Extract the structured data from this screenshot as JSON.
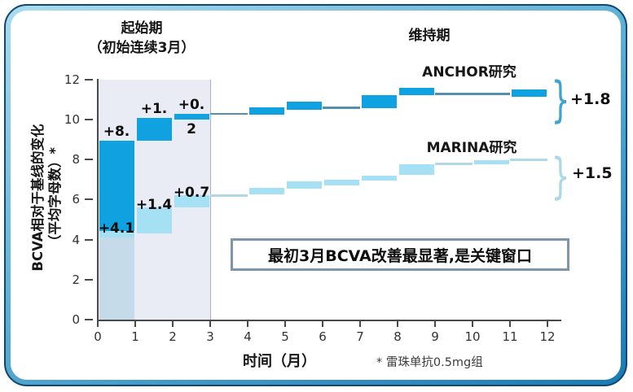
{
  "colors": {
    "anchor_bar": "#10a1e0",
    "marina_bar": "#a6e0f4",
    "marina_muted": "#c5dbe9",
    "initiation_shade": "#e9ebf5",
    "shade_border": "#a9b1bf",
    "connector_dark": "#568fae",
    "connector_light": "#b0d8e6",
    "axis": "#4a4a4a",
    "frame_band": "#1b7ab2",
    "callout_border": "#7d96ab"
  },
  "phase_initiation": {
    "title_line1": "起始期",
    "title_line2": "（初始连续3月）"
  },
  "phase_maintenance": {
    "title": "维持期"
  },
  "y_axis": {
    "label_line1": "BCVA相对于基线的变化",
    "label_line2": "（平均字母数）*",
    "ticks": [
      0,
      2,
      4,
      6,
      8,
      10,
      12
    ]
  },
  "x_axis": {
    "label": "时间（月）",
    "ticks": [
      0,
      1,
      2,
      3,
      4,
      5,
      6,
      7,
      8,
      9,
      10,
      11,
      12
    ]
  },
  "footnote": "* 雷珠单抗0.5mg组",
  "callout": {
    "text": "最初3月BCVA改善最显著,是关键窗口"
  },
  "chart_data": {
    "type": "bar",
    "subtype": "waterfall-step",
    "title": "BCVA相对于基线的变化（平均字母数）vs 时间（月）",
    "x_range": [
      0,
      12
    ],
    "y_range": [
      0,
      12
    ],
    "shaded_region_months": [
      0,
      3
    ],
    "brace_glyph": "}",
    "series": [
      {
        "name": "ANCHOR研究",
        "color": "#10a1e0",
        "maintenance_total_label": "+1.8",
        "segments": [
          {
            "months": [
              0,
              1
            ],
            "from": 4.45,
            "to": 8.95,
            "style": "bar",
            "label": "+8."
          },
          {
            "months": [
              1,
              2
            ],
            "from": 8.95,
            "to": 10.1,
            "style": "bar",
            "label": "+1."
          },
          {
            "months": [
              2,
              3
            ],
            "from": 10.0,
            "to": 10.3,
            "style": "bar",
            "label_above": "+0.",
            "label_below": "2"
          },
          {
            "months": [
              3,
              4
            ],
            "at": 10.3,
            "style": "line"
          },
          {
            "months": [
              4,
              5
            ],
            "from": 10.25,
            "to": 10.6,
            "style": "bar"
          },
          {
            "months": [
              5,
              6
            ],
            "from": 10.5,
            "to": 10.9,
            "style": "bar"
          },
          {
            "months": [
              6,
              7
            ],
            "at": 10.6,
            "style": "line"
          },
          {
            "months": [
              7,
              8
            ],
            "from": 10.55,
            "to": 11.2,
            "style": "bar"
          },
          {
            "months": [
              8,
              9
            ],
            "from": 11.2,
            "to": 11.6,
            "style": "bar"
          },
          {
            "months": [
              9,
              10
            ],
            "at": 11.3,
            "style": "line"
          },
          {
            "months": [
              10,
              11
            ],
            "at": 11.3,
            "style": "line"
          },
          {
            "months": [
              11,
              12
            ],
            "from": 11.15,
            "to": 11.5,
            "style": "bar"
          }
        ]
      },
      {
        "name": "MARINA研究",
        "color": "#a6e0f4",
        "maintenance_total_label": "+1.5",
        "segments": [
          {
            "months": [
              0,
              1
            ],
            "from": 0,
            "to": 4.45,
            "style": "bar",
            "muted_below": 4.1,
            "label": "+4.1"
          },
          {
            "months": [
              1,
              2
            ],
            "from": 4.3,
            "to": 5.6,
            "style": "bar",
            "label": "+1.4"
          },
          {
            "months": [
              2,
              3
            ],
            "from": 5.6,
            "to": 6.2,
            "style": "bar",
            "label": "+0.7"
          },
          {
            "months": [
              3,
              4
            ],
            "at": 6.2,
            "style": "line"
          },
          {
            "months": [
              4,
              5
            ],
            "from": 6.25,
            "to": 6.6,
            "style": "bar"
          },
          {
            "months": [
              5,
              6
            ],
            "from": 6.55,
            "to": 6.9,
            "style": "bar"
          },
          {
            "months": [
              6,
              7
            ],
            "from": 6.7,
            "to": 7.0,
            "style": "bar"
          },
          {
            "months": [
              7,
              8
            ],
            "from": 6.95,
            "to": 7.2,
            "style": "bar"
          },
          {
            "months": [
              8,
              9
            ],
            "from": 7.25,
            "to": 7.75,
            "style": "bar"
          },
          {
            "months": [
              9,
              10
            ],
            "at": 7.8,
            "style": "line"
          },
          {
            "months": [
              10,
              11
            ],
            "from": 7.75,
            "to": 7.95,
            "style": "bar"
          },
          {
            "months": [
              11,
              12
            ],
            "at": 8.0,
            "style": "line"
          }
        ]
      }
    ]
  }
}
